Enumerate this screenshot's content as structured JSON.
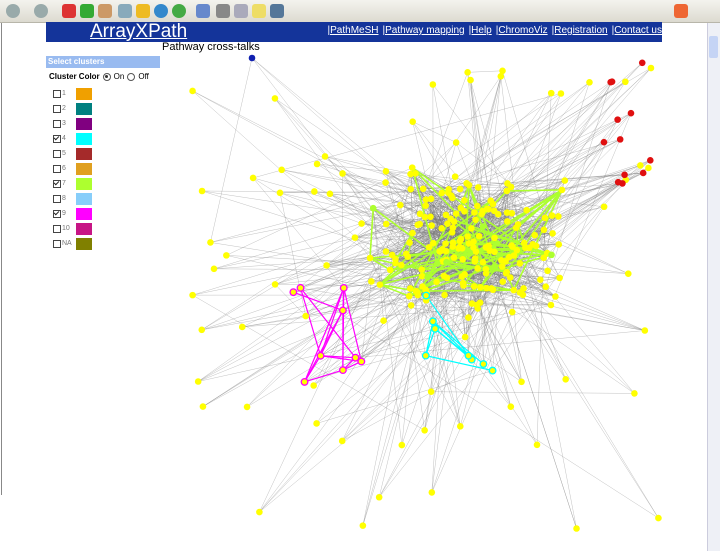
{
  "header": {
    "title": "ArrayXPath",
    "nav": [
      "|PathMeSH",
      "|Pathway mapping",
      "|Help",
      "|ChromoViz",
      "|Registration",
      "|Contact us"
    ]
  },
  "sidebar": {
    "heading": "Select clusters",
    "color_label": "Cluster Color",
    "on": "On",
    "off": "Off",
    "clusters": [
      {
        "label": "1",
        "color": "#f0a000",
        "checked": false
      },
      {
        "label": "2",
        "color": "#008080",
        "checked": false
      },
      {
        "label": "3",
        "color": "#800080",
        "checked": false
      },
      {
        "label": "4",
        "color": "#00ffff",
        "checked": true
      },
      {
        "label": "5",
        "color": "#a52a2a",
        "checked": false
      },
      {
        "label": "6",
        "color": "#e0a020",
        "checked": false
      },
      {
        "label": "7",
        "color": "#adff2f",
        "checked": true
      },
      {
        "label": "8",
        "color": "#87cefa",
        "checked": false
      },
      {
        "label": "9",
        "color": "#ff00ff",
        "checked": true
      },
      {
        "label": "10",
        "color": "#c71585",
        "checked": false
      },
      {
        "label": "NA",
        "color": "#808000",
        "checked": false
      }
    ]
  },
  "graph": {
    "title": "Pathway cross-talks"
  }
}
